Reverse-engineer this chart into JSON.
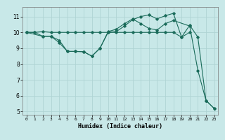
{
  "xlabel": "Humidex (Indice chaleur)",
  "bg_color": "#c8e8e8",
  "line_color": "#1a6b5a",
  "grid_color": "#afd4d4",
  "xlim": [
    -0.5,
    23.5
  ],
  "ylim": [
    4.8,
    11.6
  ],
  "yticks": [
    5,
    6,
    7,
    8,
    9,
    10,
    11
  ],
  "xticks": [
    0,
    1,
    2,
    3,
    4,
    5,
    6,
    7,
    8,
    9,
    10,
    11,
    12,
    13,
    14,
    15,
    16,
    17,
    18,
    19,
    20,
    21,
    22,
    23
  ],
  "line1_x": [
    0,
    1,
    2,
    3,
    4,
    5,
    6,
    7,
    8,
    9,
    10,
    11,
    12,
    13,
    14,
    15,
    16,
    17,
    18,
    19,
    20
  ],
  "line1_y": [
    10.0,
    10.0,
    10.05,
    10.0,
    10.0,
    10.0,
    10.0,
    10.0,
    10.0,
    10.0,
    10.0,
    10.0,
    10.0,
    10.0,
    10.0,
    10.0,
    10.0,
    10.0,
    10.0,
    9.7,
    10.0
  ],
  "line2_x": [
    0,
    1,
    2,
    3,
    4,
    5,
    6,
    7,
    8,
    9,
    10,
    11,
    12,
    13,
    14,
    15,
    16,
    17,
    18,
    19,
    20,
    21,
    22,
    23
  ],
  "line2_y": [
    10.0,
    10.0,
    9.75,
    9.75,
    9.5,
    8.8,
    8.8,
    8.78,
    8.5,
    9.0,
    10.0,
    10.05,
    10.4,
    10.8,
    11.0,
    11.1,
    10.85,
    11.05,
    11.2,
    9.7,
    10.45,
    9.7,
    5.7,
    5.2
  ],
  "line3_x": [
    0,
    2,
    3,
    4,
    5,
    6,
    7,
    8,
    9,
    10,
    11,
    12,
    13,
    14,
    15,
    16,
    17,
    18,
    20,
    21,
    22,
    23
  ],
  "line3_y": [
    10.0,
    9.75,
    9.75,
    9.35,
    8.8,
    8.8,
    8.78,
    8.5,
    9.0,
    10.05,
    10.2,
    10.55,
    10.85,
    10.55,
    10.25,
    10.15,
    10.55,
    10.75,
    10.4,
    7.6,
    5.7,
    5.2
  ]
}
